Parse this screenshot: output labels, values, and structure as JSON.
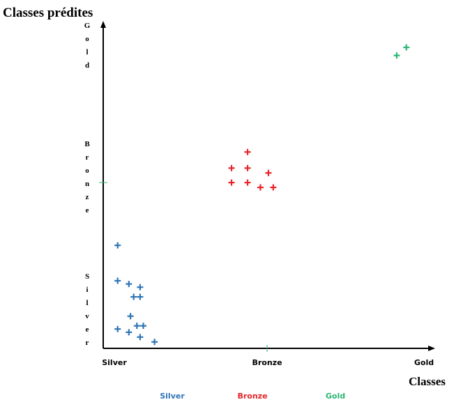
{
  "chart_data": {
    "type": "scatter",
    "title": "Classes prédites",
    "xlabel": "Classes",
    "ylabel": "Classes prédites",
    "categories": [
      "Silver",
      "Bronze",
      "Gold"
    ],
    "x_ticks": [
      "Silver",
      "Bronze",
      "Gold"
    ],
    "y_ticks": [
      "Silver",
      "Bronze",
      "Gold"
    ],
    "xlim": [
      0,
      2
    ],
    "ylim": [
      0,
      2
    ],
    "grid": false,
    "legend": "bottom",
    "series": [
      {
        "name": "Silver",
        "color": "#2e75b6",
        "points": [
          [
            0.09,
            0.64
          ],
          [
            0.09,
            0.42
          ],
          [
            0.16,
            0.4
          ],
          [
            0.23,
            0.38
          ],
          [
            0.23,
            0.32
          ],
          [
            0.19,
            0.32
          ],
          [
            0.17,
            0.2
          ],
          [
            0.21,
            0.14
          ],
          [
            0.25,
            0.14
          ],
          [
            0.09,
            0.12
          ],
          [
            0.16,
            0.1
          ],
          [
            0.23,
            0.07
          ],
          [
            0.32,
            0.04
          ]
        ]
      },
      {
        "name": "Bronze",
        "color": "#e8232a",
        "points": [
          [
            0.9,
            1.22
          ],
          [
            0.8,
            1.12
          ],
          [
            0.9,
            1.12
          ],
          [
            1.03,
            1.09
          ],
          [
            0.8,
            1.03
          ],
          [
            0.9,
            1.03
          ],
          [
            0.98,
            1.0
          ],
          [
            1.06,
            1.0
          ]
        ]
      },
      {
        "name": "Gold",
        "color": "#2bb673",
        "points": [
          [
            1.89,
            1.87
          ],
          [
            1.83,
            1.82
          ]
        ]
      }
    ]
  }
}
